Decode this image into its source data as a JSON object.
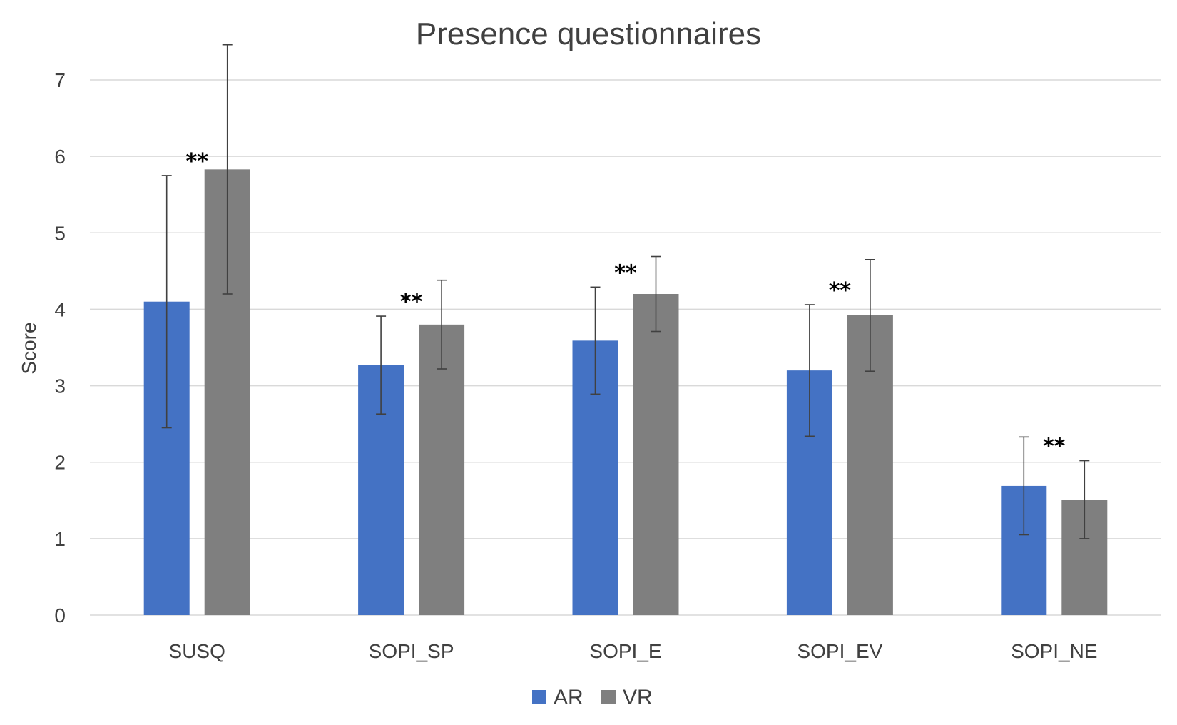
{
  "chart_data": {
    "type": "bar",
    "title": "Presence questionnaires",
    "xlabel": "",
    "ylabel": "Score",
    "ylim": [
      0,
      7
    ],
    "yticks": [
      "0",
      "1",
      "2",
      "3",
      "4",
      "5",
      "6",
      "7"
    ],
    "grid": true,
    "legend_position": "bottom",
    "categories": [
      "SUSQ",
      "SOPI_SP",
      "SOPI_E",
      "SOPI_EV",
      "SOPI_NE"
    ],
    "series": [
      {
        "name": "AR",
        "color": "#4472c4",
        "values": [
          4.1,
          3.27,
          3.59,
          3.2,
          1.69
        ],
        "errors": [
          1.65,
          0.64,
          0.7,
          0.86,
          0.64
        ]
      },
      {
        "name": "VR",
        "color": "#7f7f7f",
        "values": [
          5.83,
          3.8,
          4.2,
          3.92,
          1.51
        ],
        "errors": [
          1.63,
          0.58,
          0.49,
          0.73,
          0.51
        ]
      }
    ],
    "annotations": [
      "**",
      "**",
      "**",
      "**",
      "**"
    ]
  }
}
